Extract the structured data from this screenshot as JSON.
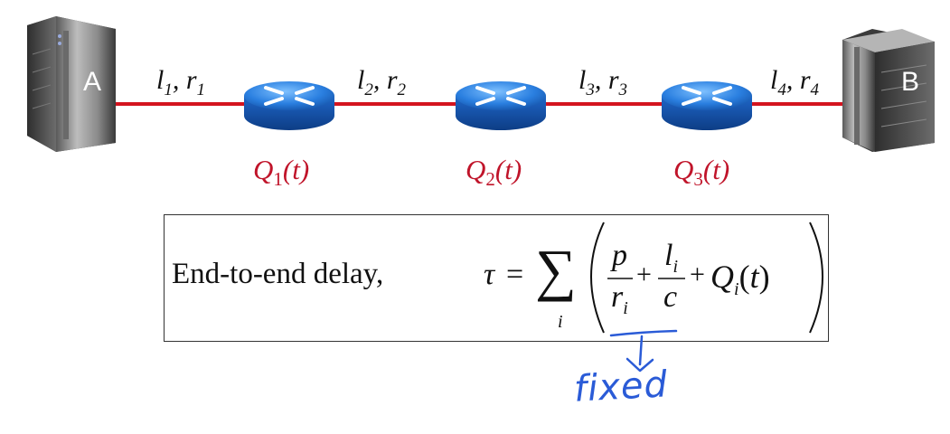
{
  "hosts": [
    {
      "name": "A",
      "side": "left"
    },
    {
      "name": "B",
      "side": "right"
    }
  ],
  "links": [
    {
      "l": "l",
      "l_sub": "1",
      "r": "r",
      "r_sub": "1"
    },
    {
      "l": "l",
      "l_sub": "2",
      "r": "r",
      "r_sub": "2"
    },
    {
      "l": "l",
      "l_sub": "3",
      "r": "r",
      "r_sub": "3"
    },
    {
      "l": "l",
      "l_sub": "4",
      "r": "r",
      "r_sub": "4"
    }
  ],
  "queues": [
    {
      "q": "Q",
      "sub": "1",
      "arg": "(t)"
    },
    {
      "q": "Q",
      "sub": "2",
      "arg": "(t)"
    },
    {
      "q": "Q",
      "sub": "3",
      "arg": "(t)"
    }
  ],
  "formula": {
    "prefix": "End-to-end delay,",
    "tau": "τ",
    "eq": "=",
    "sum": "∑",
    "sum_index": "i",
    "frac1_num": "p",
    "frac1_den": "r",
    "frac1_den_sub": "i",
    "plus1": "+",
    "frac2_num": "l",
    "frac2_num_sub": "i",
    "frac2_den": "c",
    "plus2": "+",
    "q_term": "Q",
    "q_sub": "i",
    "q_arg": "t"
  },
  "annotation": {
    "text": "fixed",
    "color": "#2a5bd7"
  },
  "colors": {
    "link": "#d4141f",
    "queue_label": "#c0142a",
    "router": "#1e6fd8"
  }
}
